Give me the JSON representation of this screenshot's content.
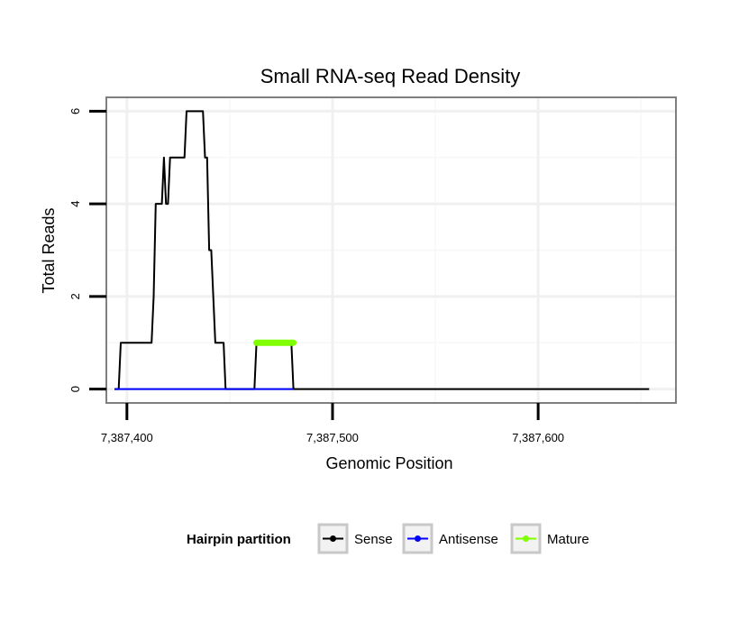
{
  "chart_data": {
    "type": "line",
    "title": "Small RNA-seq Read Density",
    "xlabel": "Genomic Position",
    "ylabel": "Total Reads",
    "xlim": [
      7387390,
      7387667
    ],
    "ylim": [
      -0.3,
      6.3
    ],
    "x_ticks": [
      7387400,
      7387500,
      7387600
    ],
    "x_tick_labels": [
      "7,387,400",
      "7,387,500",
      "7,387,600"
    ],
    "y_ticks": [
      0,
      2,
      4,
      6
    ],
    "y_tick_labels": [
      "0",
      "2",
      "4",
      "6"
    ],
    "x_minor_gridlines": [
      7387450,
      7387550,
      7387650
    ],
    "y_minor_gridlines": [
      1,
      3,
      5
    ],
    "grid": true,
    "legend_position": "bottom",
    "legend_title": "Hairpin partition",
    "series": [
      {
        "name": "Sense",
        "color": "#000000",
        "x": [
          7387394,
          7387396,
          7387397,
          7387412,
          7387413,
          7387414,
          7387417,
          7387418,
          7387419,
          7387420,
          7387421,
          7387422,
          7387423,
          7387428,
          7387429,
          7387433,
          7387434,
          7387437,
          7387438,
          7387439,
          7387440,
          7387441,
          7387443,
          7387446,
          7387447,
          7387448,
          7387462,
          7387463,
          7387464,
          7387480,
          7387481,
          7387482,
          7387654
        ],
        "y": [
          0,
          0,
          1,
          1,
          2,
          4,
          4,
          5,
          4,
          4,
          5,
          5,
          5,
          5,
          6,
          6,
          6,
          6,
          5,
          5,
          3,
          3,
          1,
          1,
          1,
          0,
          0,
          1,
          1,
          1,
          0,
          0,
          0
        ]
      },
      {
        "name": "Antisense",
        "color": "#0000ff",
        "x": [
          7387394,
          7387448,
          7387462,
          7387481
        ],
        "y": [
          0,
          0,
          0,
          0
        ]
      },
      {
        "name": "Mature",
        "color": "#7fff00",
        "x": [
          7387463,
          7387481
        ],
        "y": [
          1,
          1
        ]
      }
    ]
  }
}
